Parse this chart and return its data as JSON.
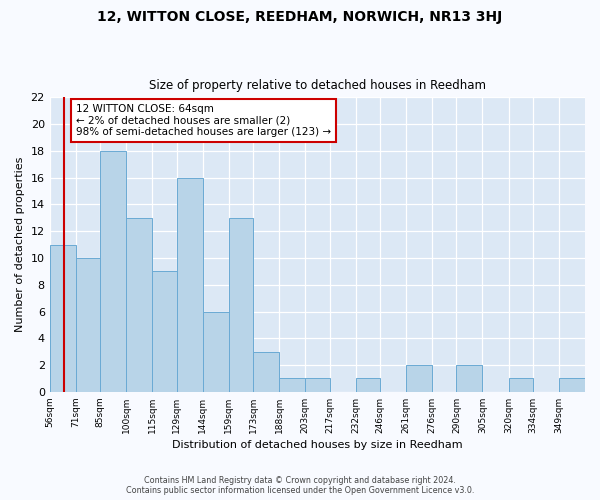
{
  "title": "12, WITTON CLOSE, REEDHAM, NORWICH, NR13 3HJ",
  "subtitle": "Size of property relative to detached houses in Reedham",
  "xlabel": "Distribution of detached houses by size in Reedham",
  "ylabel": "Number of detached properties",
  "bar_color": "#b8d4e8",
  "bar_edge_color": "#6aaad4",
  "plot_bg_color": "#dce8f5",
  "fig_bg_color": "#f8faff",
  "grid_color": "#ffffff",
  "bin_edges": [
    56,
    71,
    85,
    100,
    115,
    129,
    144,
    159,
    173,
    188,
    203,
    217,
    232,
    246,
    261,
    276,
    290,
    305,
    320,
    334,
    349,
    364
  ],
  "bin_labels": [
    "56sqm",
    "71sqm",
    "85sqm",
    "100sqm",
    "115sqm",
    "129sqm",
    "144sqm",
    "159sqm",
    "173sqm",
    "188sqm",
    "203sqm",
    "217sqm",
    "232sqm",
    "246sqm",
    "261sqm",
    "276sqm",
    "290sqm",
    "305sqm",
    "320sqm",
    "334sqm",
    "349sqm"
  ],
  "counts": [
    11,
    10,
    18,
    13,
    9,
    16,
    6,
    13,
    3,
    1,
    1,
    0,
    1,
    0,
    2,
    0,
    2,
    0,
    1,
    0,
    1
  ],
  "property_line_x": 64,
  "annotation_line1": "12 WITTON CLOSE: 64sqm",
  "annotation_line2": "← 2% of detached houses are smaller (2)",
  "annotation_line3": "98% of semi-detached houses are larger (123) →",
  "annotation_box_color": "#ffffff",
  "annotation_border_color": "#cc0000",
  "ylim": [
    0,
    22
  ],
  "yticks": [
    0,
    2,
    4,
    6,
    8,
    10,
    12,
    14,
    16,
    18,
    20,
    22
  ],
  "footer_line1": "Contains HM Land Registry data © Crown copyright and database right 2024.",
  "footer_line2": "Contains public sector information licensed under the Open Government Licence v3.0."
}
